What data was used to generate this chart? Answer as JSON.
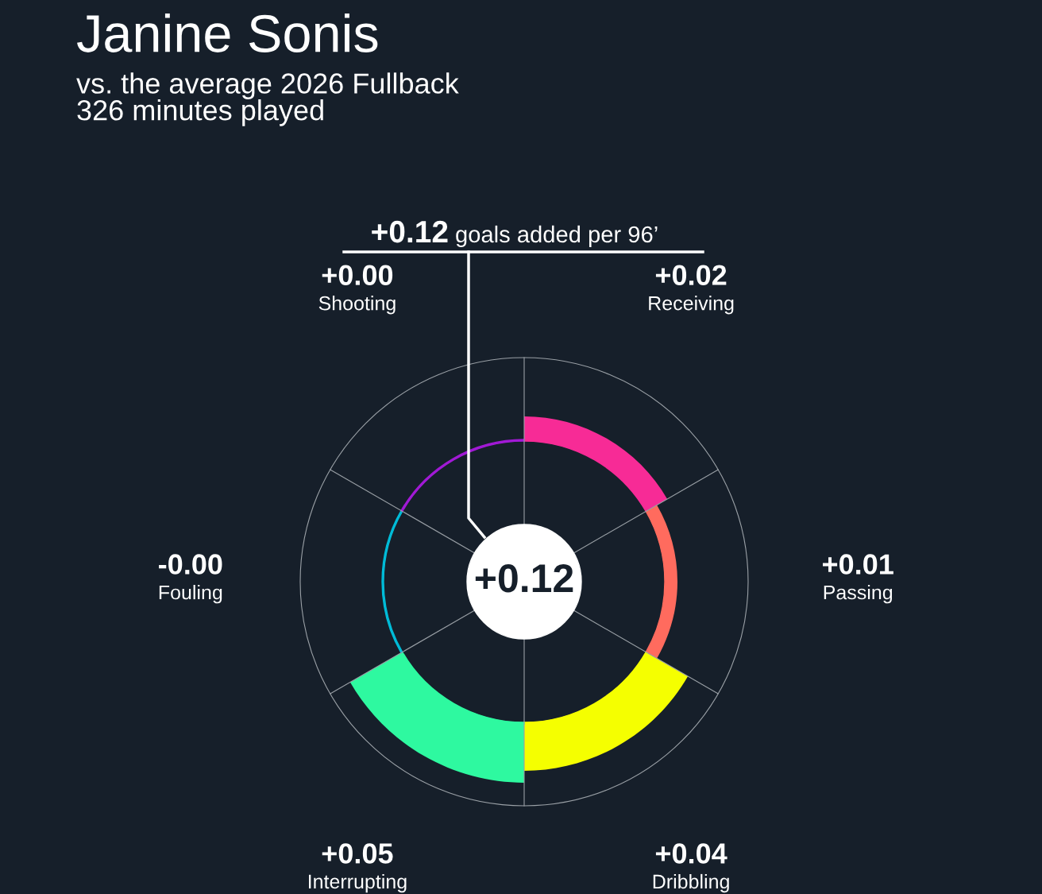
{
  "chart_data": {
    "type": "other",
    "title": "Janine Sonis",
    "subtitle": "vs. the average 2026 Fullback\n326 minutes played",
    "categories": [
      "Receiving",
      "Passing",
      "Dribbling",
      "Interrupting",
      "Fouling",
      "Shooting"
    ],
    "values": [
      0.02,
      0.01,
      0.04,
      0.05,
      -0.0,
      0.0
    ],
    "value_labels": [
      "+0.02",
      "+0.01",
      "+0.04",
      "+0.05",
      "-0.00",
      "+0.00"
    ],
    "colors": [
      "#f72b96",
      "#ff6b5e",
      "#f5ff00",
      "#2ef9a0",
      "#00bcd8",
      "#a21ad6"
    ],
    "annotations": [
      "+0.12",
      "goals added per 96’",
      "+0.12"
    ]
  }
}
